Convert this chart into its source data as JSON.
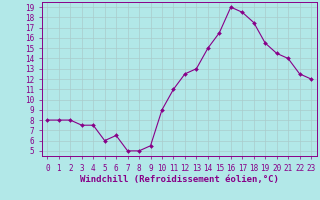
{
  "x": [
    0,
    1,
    2,
    3,
    4,
    5,
    6,
    7,
    8,
    9,
    10,
    11,
    12,
    13,
    14,
    15,
    16,
    17,
    18,
    19,
    20,
    21,
    22,
    23
  ],
  "y": [
    8.0,
    8.0,
    8.0,
    7.5,
    7.5,
    6.0,
    6.5,
    5.0,
    5.0,
    5.5,
    9.0,
    11.0,
    12.5,
    13.0,
    15.0,
    16.5,
    19.0,
    18.5,
    17.5,
    15.5,
    14.5,
    14.0,
    12.5,
    12.0
  ],
  "line_color": "#880088",
  "marker": "D",
  "marker_size": 2.0,
  "background_color": "#b2e8e8",
  "grid_color": "#aacccc",
  "xlabel": "Windchill (Refroidissement éolien,°C)",
  "xlim": [
    -0.5,
    23.5
  ],
  "ylim": [
    4.5,
    19.5
  ],
  "yticks": [
    5,
    6,
    7,
    8,
    9,
    10,
    11,
    12,
    13,
    14,
    15,
    16,
    17,
    18,
    19
  ],
  "xticks": [
    0,
    1,
    2,
    3,
    4,
    5,
    6,
    7,
    8,
    9,
    10,
    11,
    12,
    13,
    14,
    15,
    16,
    17,
    18,
    19,
    20,
    21,
    22,
    23
  ],
  "tick_color": "#880088",
  "label_color": "#880088",
  "font_size_label": 6.5,
  "font_size_tick": 5.5
}
